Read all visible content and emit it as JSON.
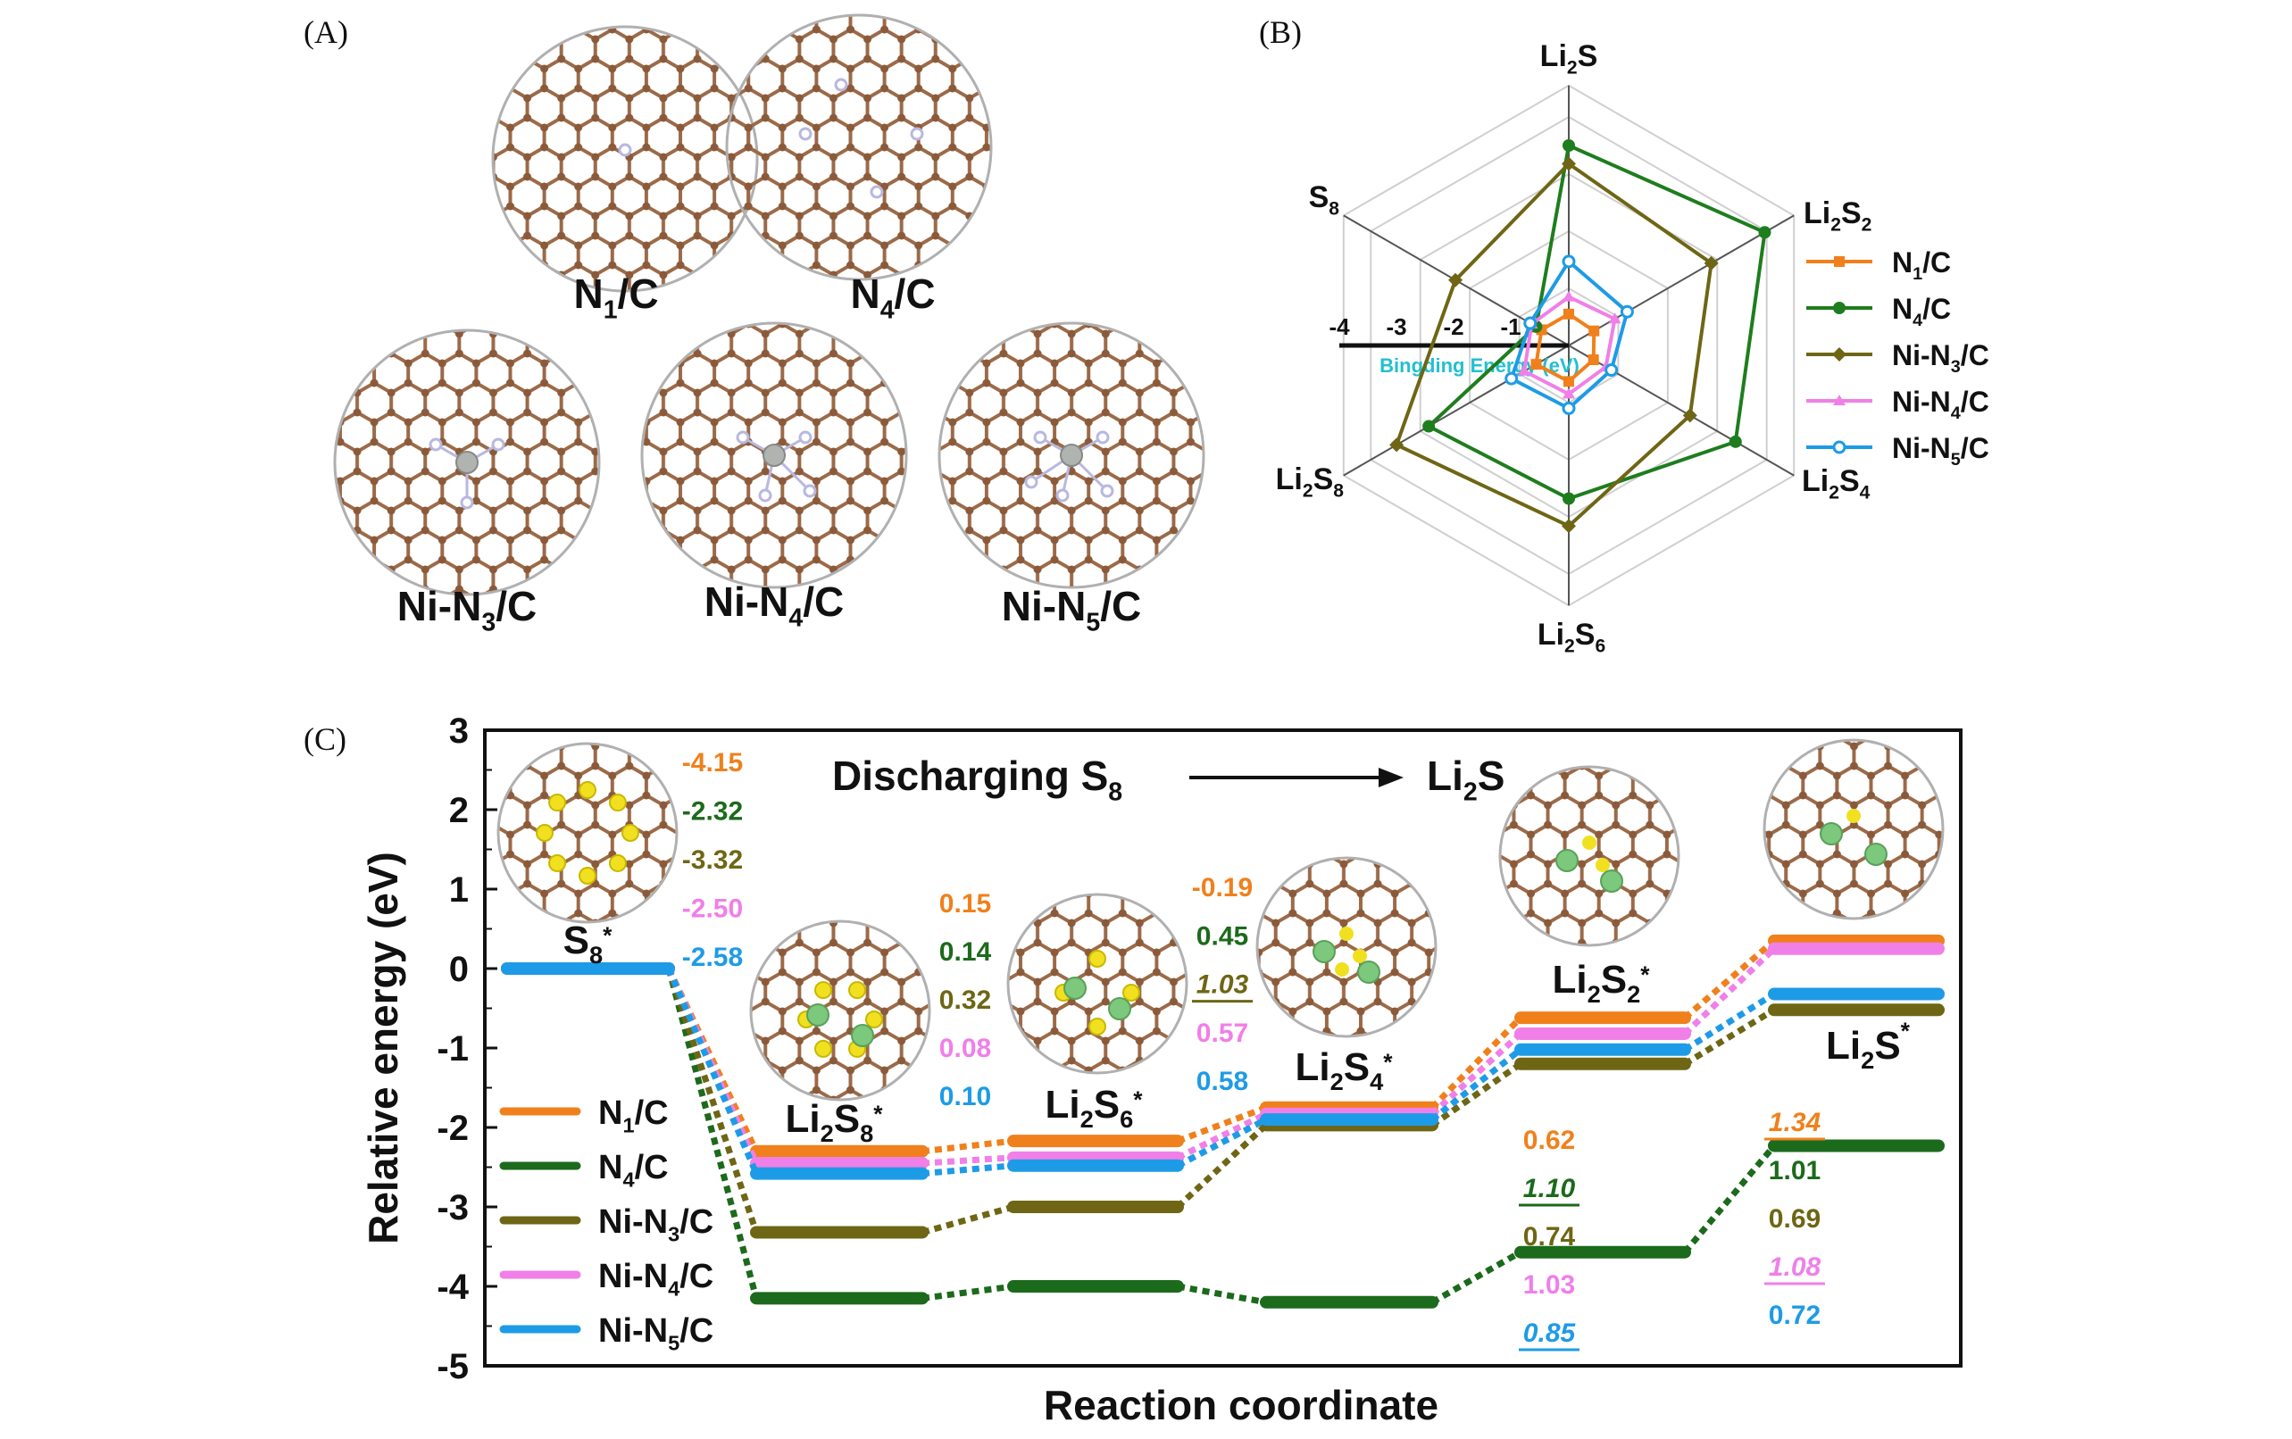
{
  "colors": {
    "N1/C": "#f0801c",
    "N4/C": "#1c6a1c",
    "Ni-N3/C": "#6e6614",
    "Ni-N4/C": "#f07fe8",
    "Ni-N5/C": "#1e9be6",
    "radar_N4": "#1e7d1e",
    "carbon": "#9c6a48",
    "nitrogen": "#b8b8e0",
    "sulfur": "#f0e020",
    "lithium": "#7cc87c",
    "nickel": "#b0b4b0",
    "axis_label": "#22c0d0"
  },
  "panels": {
    "a": "(A)",
    "b": "(B)",
    "c": "(C)"
  },
  "panel_a": {
    "structures": [
      {
        "label": "N",
        "sub": "1",
        "tail": "/C"
      },
      {
        "label": "N",
        "sub": "4",
        "tail": "/C"
      },
      {
        "label": "Ni-N",
        "sub": "3",
        "tail": "/C"
      },
      {
        "label": "Ni-N",
        "sub": "4",
        "tail": "/C"
      },
      {
        "label": "Ni-N",
        "sub": "5",
        "tail": "/C"
      }
    ]
  },
  "chart_data": [
    {
      "type": "radar",
      "axis_label": "Bingding Energy (eV)",
      "tick_labels": [
        "-4",
        "-3",
        "-2",
        "-1"
      ],
      "range": [
        0,
        -4
      ],
      "legend_position": "right",
      "axes": [
        {
          "main": "Li",
          "sub": "2",
          "rest": "S",
          "sub2": ""
        },
        {
          "main": "Li",
          "sub": "2",
          "rest": "S",
          "sub2": "2"
        },
        {
          "main": "Li",
          "sub": "2",
          "rest": "S",
          "sub2": "4"
        },
        {
          "main": "Li",
          "sub": "2",
          "rest": "S",
          "sub2": "6"
        },
        {
          "main": "Li",
          "sub": "2",
          "rest": "S",
          "sub2": "8"
        },
        {
          "main": "S",
          "sub": "8",
          "rest": "",
          "sub2": ""
        }
      ],
      "series": [
        {
          "name": "N1/C",
          "label": "N",
          "sub": "1",
          "tail": "/C",
          "marker": "square",
          "values": [
            -0.55,
            -0.51,
            -0.5,
            -0.63,
            -0.66,
            -0.55
          ]
        },
        {
          "name": "N4/C",
          "label": "N",
          "sub": "4",
          "tail": "/C",
          "marker": "circle",
          "values": [
            -3.5,
            -3.96,
            -3.37,
            -2.68,
            -2.83,
            -0.66
          ]
        },
        {
          "name": "Ni-N3/C",
          "label": "Ni-N",
          "sub": "3",
          "tail": "/C",
          "marker": "diamond",
          "values": [
            -3.18,
            -2.88,
            -2.45,
            -3.16,
            -3.48,
            -2.29
          ]
        },
        {
          "name": "Ni-N4/C",
          "label": "Ni-N",
          "sub": "4",
          "tail": "/C",
          "marker": "triangle",
          "values": [
            -0.85,
            -0.93,
            -0.75,
            -0.85,
            -0.9,
            -0.75
          ]
        },
        {
          "name": "Ni-N5/C",
          "label": "Ni-N",
          "sub": "5",
          "tail": "/C",
          "marker": "circle-open",
          "values": [
            -1.47,
            -1.18,
            -0.86,
            -1.1,
            -1.16,
            -0.78
          ]
        }
      ]
    },
    {
      "type": "energy-diagram",
      "title": {
        "main": "Discharging S",
        "sub": "8",
        "end": "Li",
        "end_sub": "2",
        "end_rest": "S"
      },
      "xlabel": "Reaction coordinate",
      "ylabel": "Relative energy (eV)",
      "ylim": [
        -5,
        3
      ],
      "yticks": [
        "3",
        "2",
        "1",
        "0",
        "-1",
        "-2",
        "-3",
        "-4",
        "-5"
      ],
      "legend_position": "bottom-left",
      "states": [
        {
          "main": "S",
          "sub": "8",
          "rest": "",
          "star": "*"
        },
        {
          "main": "Li",
          "sub": "2",
          "rest": "S",
          "sub2": "8",
          "star": "*"
        },
        {
          "main": "Li",
          "sub": "2",
          "rest": "S",
          "sub2": "6",
          "star": "*"
        },
        {
          "main": "Li",
          "sub": "2",
          "rest": "S",
          "sub2": "4",
          "star": "*"
        },
        {
          "main": "Li",
          "sub": "2",
          "rest": "S",
          "sub2": "2",
          "star": "*"
        },
        {
          "main": "Li",
          "sub": "2",
          "rest": "S",
          "sub2": "",
          "star": "*"
        }
      ],
      "series": [
        {
          "name": "N1/C",
          "label": "N",
          "sub": "1",
          "tail": "/C",
          "values": [
            0,
            -2.3,
            -2.17,
            -1.75,
            -0.62,
            0.35
          ]
        },
        {
          "name": "N4/C",
          "label": "N",
          "sub": "4",
          "tail": "/C",
          "values": [
            0,
            -4.15,
            -4.0,
            -4.2,
            -3.57,
            -2.23
          ]
        },
        {
          "name": "Ni-N3/C",
          "label": "Ni-N",
          "sub": "3",
          "tail": "/C",
          "values": [
            0,
            -3.32,
            -3.0,
            -1.97,
            -1.2,
            -0.52
          ]
        },
        {
          "name": "Ni-N4/C",
          "label": "Ni-N",
          "sub": "4",
          "tail": "/C",
          "values": [
            0,
            -2.45,
            -2.38,
            -1.83,
            -0.82,
            0.25
          ]
        },
        {
          "name": "Ni-N5/C",
          "label": "Ni-N",
          "sub": "5",
          "tail": "/C",
          "values": [
            0,
            -2.58,
            -2.48,
            -1.9,
            -1.02,
            -0.32
          ]
        }
      ],
      "annotations": [
        {
          "step": 0,
          "values": [
            {
              "t": "-4.15"
            },
            {
              "t": "-2.32"
            },
            {
              "t": "-3.32"
            },
            {
              "t": "-2.50"
            },
            {
              "t": "-2.58"
            }
          ]
        },
        {
          "step": 1,
          "values": [
            {
              "t": "0.15"
            },
            {
              "t": "0.14"
            },
            {
              "t": "0.32"
            },
            {
              "t": "0.08"
            },
            {
              "t": "0.10"
            }
          ]
        },
        {
          "step": 2,
          "values": [
            {
              "t": "-0.19"
            },
            {
              "t": "0.45"
            },
            {
              "t": "1.03",
              "underline": true
            },
            {
              "t": "0.57"
            },
            {
              "t": "0.58"
            }
          ]
        },
        {
          "step": 4,
          "values": [
            {
              "t": "0.62"
            },
            {
              "t": "1.10",
              "underline": true
            },
            {
              "t": "0.74"
            },
            {
              "t": "1.03"
            },
            {
              "t": "0.85",
              "underline": true
            }
          ]
        },
        {
          "step": 5,
          "values": [
            {
              "t": "1.34",
              "underline": true
            },
            {
              "t": "1.01"
            },
            {
              "t": "0.69"
            },
            {
              "t": "1.08",
              "underline": true
            },
            {
              "t": "0.72"
            }
          ]
        }
      ]
    }
  ]
}
